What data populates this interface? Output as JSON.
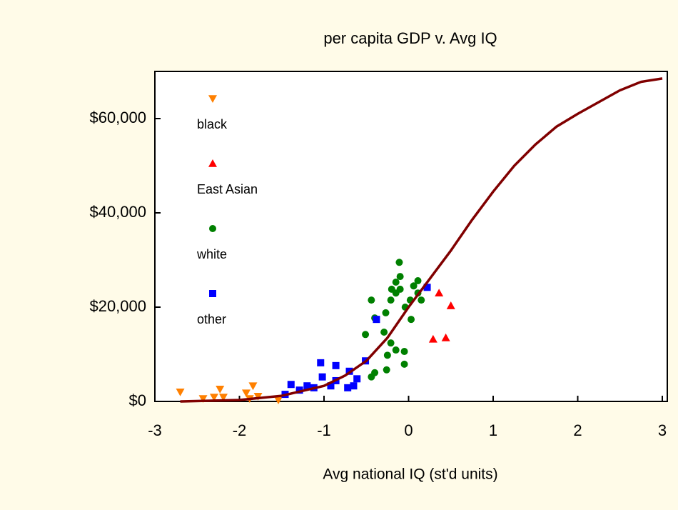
{
  "chart_data": {
    "type": "scatter",
    "title": "per capita GDP  v. Avg IQ",
    "x_label": "Avg national IQ (st'd units)",
    "xlim": [
      -3,
      3
    ],
    "xticks": [
      -3,
      -2,
      -1,
      0,
      1,
      2,
      3
    ],
    "ylim": [
      0,
      70000
    ],
    "yticks": [
      {
        "value": 0,
        "label": "$0"
      },
      {
        "value": 20000,
        "label": "$20,000"
      },
      {
        "value": 40000,
        "label": "$40,000"
      },
      {
        "value": 60000,
        "label": "$60,000"
      }
    ],
    "series": [
      {
        "name": "black",
        "color": "#ff8000",
        "marker": "triangle-down",
        "x": [
          -2.7,
          -2.43,
          -2.3,
          -2.23,
          -2.19,
          -1.92,
          -1.88,
          -1.84,
          -1.78,
          -1.54
        ],
        "values": [
          2000,
          600,
          900,
          2600,
          900,
          1800,
          600,
          3300,
          1100,
          300
        ]
      },
      {
        "name": "East Asian",
        "color": "#ff0000",
        "marker": "triangle-up",
        "x": [
          0.36,
          0.5,
          0.29,
          0.44
        ],
        "values": [
          23000,
          20300,
          13200,
          13500
        ]
      },
      {
        "name": "white",
        "color": "#008000",
        "marker": "circle",
        "x": [
          -0.11,
          -0.1,
          -0.15,
          -0.2,
          -0.1,
          -0.21,
          -0.44,
          0.11,
          0.11,
          0.02,
          0.15,
          -0.04,
          -0.27,
          0.03,
          -0.4,
          -0.29,
          -0.51,
          -0.21,
          -0.25,
          -0.05,
          -0.05,
          -0.26,
          -0.4,
          -0.44,
          -0.15,
          -0.15,
          0.06
        ],
        "values": [
          29500,
          26500,
          25300,
          23800,
          23800,
          21500,
          21500,
          25600,
          23000,
          21500,
          21500,
          20000,
          18800,
          17400,
          17700,
          14700,
          14200,
          12400,
          9800,
          10600,
          7900,
          6700,
          6100,
          5200,
          10900,
          23000,
          24500
        ]
      },
      {
        "name": "other",
        "color": "#0000ff",
        "marker": "square",
        "x": [
          0.22,
          -0.38,
          -0.51,
          -0.7,
          -0.86,
          -1.04,
          -1.02,
          -0.86,
          -0.72,
          -0.61,
          -1.2,
          -1.39,
          -1.29,
          -1.12,
          -0.92,
          -1.46,
          -0.65
        ],
        "values": [
          24200,
          17400,
          8600,
          6400,
          7600,
          8200,
          5200,
          4400,
          2900,
          4800,
          3300,
          3600,
          2400,
          2900,
          3300,
          1500,
          3300
        ]
      },
      {
        "color": "#800000",
        "marker": "line",
        "x": [
          -2.7,
          -2,
          -1.5,
          -1,
          -0.75,
          -0.5,
          -0.25,
          0,
          0.25,
          0.5,
          0.75,
          1,
          1.25,
          1.5,
          1.75,
          2,
          2.25,
          2.5,
          2.75,
          3
        ],
        "values": [
          0,
          300,
          1200,
          3300,
          5500,
          8600,
          13500,
          20000,
          26000,
          32000,
          38500,
          44500,
          50000,
          54500,
          58300,
          61000,
          63500,
          66000,
          67800,
          68500
        ]
      }
    ]
  }
}
